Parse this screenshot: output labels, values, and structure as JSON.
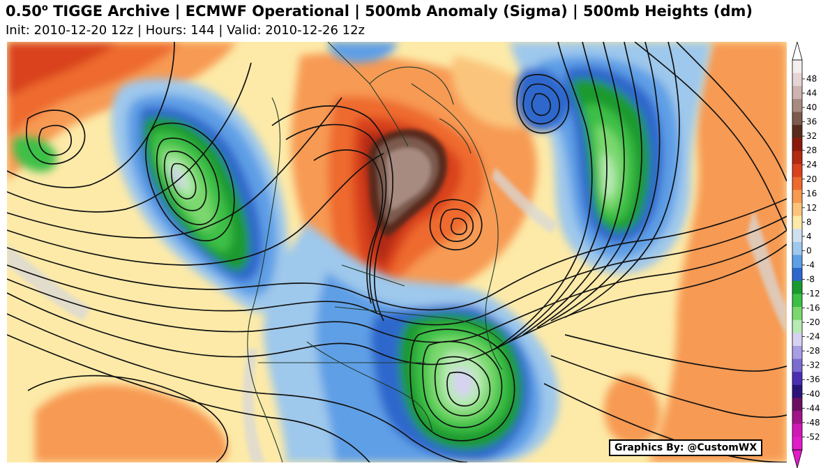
{
  "header": {
    "title_prefix": "0.50",
    "title_sup": "o",
    "title_rest": " TIGGE Archive | ECMWF Operational | 500mb Anomaly (Sigma) | 500mb Heights (dm)",
    "subtitle": "Init: 2010-12-20 12z | Hours: 144 | Valid: 2010-12-26 12z"
  },
  "credit": "Graphics By: @CustomWX",
  "colorbar": {
    "ticks": [
      "48",
      "44",
      "40",
      "36",
      "32",
      "28",
      "24",
      "20",
      "16",
      "12",
      "8",
      "4",
      "0",
      "-4",
      "-8",
      "-12",
      "-16",
      "-20",
      "-24",
      "-28",
      "-32",
      "-36",
      "-40",
      "-44",
      "-48",
      "-52"
    ],
    "colors": [
      "#f5eeee",
      "#e6d3d3",
      "#cdb4b0",
      "#a78a80",
      "#7c5a4e",
      "#5a2a1c",
      "#8c1a0c",
      "#b22a12",
      "#d9421c",
      "#ee6a2e",
      "#f79a52",
      "#fbc47c",
      "#fdeaa8",
      "#cfe0f0",
      "#9ec8ec",
      "#5f9fe6",
      "#2e68cc",
      "#1a9a2e",
      "#3cc046",
      "#7ad86e",
      "#b8eab4",
      "#d7d2f2",
      "#a79ee4",
      "#7a6cd0",
      "#4c2eb0",
      "#2a1478",
      "#6b1060",
      "#a01488",
      "#d018b8",
      "#e01cc8"
    ],
    "top_cap": "#ffffff",
    "bottom_cap": "#e01cc8"
  },
  "map": {
    "background": "#fdeaa8",
    "anomalies": [
      {
        "name": "eastern-pacific-trough",
        "sign": "negative",
        "peak_sigma": -28
      },
      {
        "name": "greenland-ridge",
        "sign": "positive",
        "peak_sigma": 36
      },
      {
        "name": "southeast-us-trough",
        "sign": "negative",
        "peak_sigma": -28
      },
      {
        "name": "north-atlantic-trough",
        "sign": "negative",
        "peak_sigma": -24
      }
    ]
  }
}
